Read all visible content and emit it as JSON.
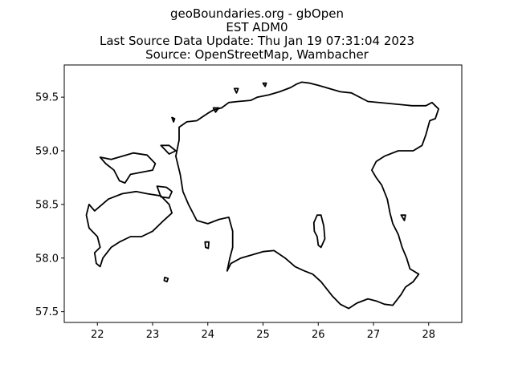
{
  "title_lines": [
    "geoBoundaries.org - gbOpen",
    "EST ADM0",
    "Last Source Data Update: Thu Jan 19 07:31:04 2023",
    "Source: OpenStreetMap, Wambacher"
  ],
  "chart_data": {
    "type": "map",
    "xlim": [
      21.4,
      28.6
    ],
    "ylim": [
      57.4,
      59.8
    ],
    "x_ticks": [
      22,
      23,
      24,
      25,
      26,
      27,
      28
    ],
    "y_ticks": [
      57.5,
      58.0,
      58.5,
      59.0,
      59.5
    ],
    "x_tick_labels": [
      "22",
      "23",
      "24",
      "25",
      "26",
      "27",
      "28"
    ],
    "y_tick_labels": [
      "57.5",
      "58.0",
      "58.5",
      "59.0",
      "59.5"
    ],
    "grid": false,
    "line_color": "#000000",
    "features": [
      {
        "name": "mainland",
        "closed": true,
        "coords": [
          [
            23.48,
            59.22
          ],
          [
            23.62,
            59.27
          ],
          [
            23.8,
            59.28
          ],
          [
            24.0,
            59.35
          ],
          [
            24.1,
            59.38
          ],
          [
            24.25,
            59.4
          ],
          [
            24.38,
            59.45
          ],
          [
            24.55,
            59.46
          ],
          [
            24.78,
            59.47
          ],
          [
            24.9,
            59.5
          ],
          [
            25.1,
            59.52
          ],
          [
            25.3,
            59.55
          ],
          [
            25.5,
            59.59
          ],
          [
            25.6,
            59.62
          ],
          [
            25.7,
            59.64
          ],
          [
            25.85,
            59.63
          ],
          [
            26.0,
            59.61
          ],
          [
            26.2,
            59.58
          ],
          [
            26.4,
            59.55
          ],
          [
            26.6,
            59.54
          ],
          [
            26.9,
            59.46
          ],
          [
            27.3,
            59.44
          ],
          [
            27.7,
            59.42
          ],
          [
            27.95,
            59.42
          ],
          [
            28.06,
            59.45
          ],
          [
            28.18,
            59.39
          ],
          [
            28.12,
            59.3
          ],
          [
            28.02,
            59.28
          ],
          [
            27.95,
            59.15
          ],
          [
            27.88,
            59.05
          ],
          [
            27.72,
            59.0
          ],
          [
            27.45,
            59.0
          ],
          [
            27.2,
            58.95
          ],
          [
            27.05,
            58.9
          ],
          [
            26.97,
            58.82
          ],
          [
            27.05,
            58.75
          ],
          [
            27.15,
            58.68
          ],
          [
            27.25,
            58.55
          ],
          [
            27.3,
            58.42
          ],
          [
            27.35,
            58.32
          ],
          [
            27.45,
            58.22
          ],
          [
            27.52,
            58.1
          ],
          [
            27.6,
            58.0
          ],
          [
            27.66,
            57.9
          ],
          [
            27.82,
            57.85
          ],
          [
            27.72,
            57.78
          ],
          [
            27.58,
            57.73
          ],
          [
            27.5,
            57.66
          ],
          [
            27.35,
            57.56
          ],
          [
            27.2,
            57.57
          ],
          [
            27.05,
            57.6
          ],
          [
            26.9,
            57.62
          ],
          [
            26.7,
            57.58
          ],
          [
            26.55,
            57.53
          ],
          [
            26.4,
            57.57
          ],
          [
            26.25,
            57.65
          ],
          [
            26.05,
            57.78
          ],
          [
            25.9,
            57.85
          ],
          [
            25.75,
            57.88
          ],
          [
            25.58,
            57.92
          ],
          [
            25.4,
            58.0
          ],
          [
            25.2,
            58.07
          ],
          [
            25.0,
            58.06
          ],
          [
            24.8,
            58.03
          ],
          [
            24.6,
            58.0
          ],
          [
            24.42,
            57.95
          ],
          [
            24.35,
            57.88
          ],
          [
            24.4,
            58.0
          ],
          [
            24.45,
            58.1
          ],
          [
            24.45,
            58.25
          ],
          [
            24.38,
            58.38
          ],
          [
            24.2,
            58.36
          ],
          [
            24.0,
            58.32
          ],
          [
            23.8,
            58.35
          ],
          [
            23.65,
            58.5
          ],
          [
            23.55,
            58.62
          ],
          [
            23.5,
            58.78
          ],
          [
            23.42,
            58.95
          ],
          [
            23.48,
            59.1
          ],
          [
            23.48,
            59.22
          ]
        ]
      },
      {
        "name": "lake-vortsjarv",
        "closed": true,
        "coords": [
          [
            25.98,
            58.4
          ],
          [
            26.05,
            58.4
          ],
          [
            26.1,
            58.3
          ],
          [
            26.12,
            58.18
          ],
          [
            26.05,
            58.1
          ],
          [
            26.0,
            58.12
          ],
          [
            25.98,
            58.2
          ],
          [
            25.93,
            58.25
          ],
          [
            25.92,
            58.33
          ],
          [
            25.98,
            58.4
          ]
        ]
      },
      {
        "name": "saaremaa",
        "closed": true,
        "coords": [
          [
            21.85,
            58.5
          ],
          [
            21.95,
            58.44
          ],
          [
            22.2,
            58.55
          ],
          [
            22.45,
            58.6
          ],
          [
            22.7,
            58.62
          ],
          [
            22.9,
            58.6
          ],
          [
            23.15,
            58.58
          ],
          [
            23.3,
            58.5
          ],
          [
            23.35,
            58.42
          ],
          [
            23.2,
            58.35
          ],
          [
            23.0,
            58.25
          ],
          [
            22.8,
            58.2
          ],
          [
            22.6,
            58.2
          ],
          [
            22.4,
            58.15
          ],
          [
            22.25,
            58.1
          ],
          [
            22.1,
            58.0
          ],
          [
            22.05,
            57.92
          ],
          [
            21.98,
            57.95
          ],
          [
            21.95,
            58.05
          ],
          [
            22.05,
            58.1
          ],
          [
            22.0,
            58.2
          ],
          [
            21.85,
            58.28
          ],
          [
            21.8,
            58.4
          ],
          [
            21.85,
            58.5
          ]
        ]
      },
      {
        "name": "hiiumaa",
        "closed": true,
        "coords": [
          [
            22.05,
            58.94
          ],
          [
            22.25,
            58.92
          ],
          [
            22.45,
            58.95
          ],
          [
            22.65,
            58.98
          ],
          [
            22.9,
            58.96
          ],
          [
            23.05,
            58.88
          ],
          [
            23.0,
            58.82
          ],
          [
            22.8,
            58.8
          ],
          [
            22.6,
            58.78
          ],
          [
            22.5,
            58.7
          ],
          [
            22.4,
            58.72
          ],
          [
            22.3,
            58.82
          ],
          [
            22.15,
            58.88
          ],
          [
            22.05,
            58.94
          ]
        ]
      },
      {
        "name": "muhu",
        "closed": true,
        "coords": [
          [
            23.08,
            58.67
          ],
          [
            23.25,
            58.66
          ],
          [
            23.35,
            58.62
          ],
          [
            23.3,
            58.56
          ],
          [
            23.15,
            58.57
          ],
          [
            23.08,
            58.67
          ]
        ]
      },
      {
        "name": "vormsi",
        "closed": true,
        "coords": [
          [
            23.15,
            59.05
          ],
          [
            23.3,
            59.05
          ],
          [
            23.42,
            59.0
          ],
          [
            23.3,
            58.97
          ],
          [
            23.15,
            59.05
          ]
        ]
      },
      {
        "name": "ruhnu",
        "closed": true,
        "coords": [
          [
            23.22,
            57.82
          ],
          [
            23.28,
            57.81
          ],
          [
            23.26,
            57.78
          ],
          [
            23.21,
            57.79
          ],
          [
            23.22,
            57.82
          ]
        ]
      },
      {
        "name": "kihnu",
        "closed": true,
        "coords": [
          [
            23.95,
            58.15
          ],
          [
            24.02,
            58.15
          ],
          [
            24.01,
            58.09
          ],
          [
            23.96,
            58.1
          ],
          [
            23.95,
            58.15
          ]
        ]
      },
      {
        "name": "prangli",
        "closed": true,
        "coords": [
          [
            25.0,
            59.63
          ],
          [
            25.06,
            59.63
          ],
          [
            25.04,
            59.6
          ],
          [
            25.0,
            59.63
          ]
        ]
      },
      {
        "name": "island-ne-1",
        "closed": true,
        "coords": [
          [
            24.48,
            59.58
          ],
          [
            24.55,
            59.58
          ],
          [
            24.52,
            59.54
          ],
          [
            24.48,
            59.58
          ]
        ]
      },
      {
        "name": "island-ne-2",
        "closed": true,
        "coords": [
          [
            24.1,
            59.4
          ],
          [
            24.2,
            59.4
          ],
          [
            24.14,
            59.36
          ],
          [
            24.1,
            59.4
          ]
        ]
      },
      {
        "name": "island-nw",
        "closed": true,
        "coords": [
          [
            23.35,
            59.31
          ],
          [
            23.4,
            59.3
          ],
          [
            23.38,
            59.27
          ],
          [
            23.35,
            59.31
          ]
        ]
      },
      {
        "name": "island-e",
        "closed": true,
        "coords": [
          [
            27.5,
            58.4
          ],
          [
            27.58,
            58.4
          ],
          [
            27.56,
            58.35
          ],
          [
            27.5,
            58.4
          ]
        ]
      }
    ]
  }
}
